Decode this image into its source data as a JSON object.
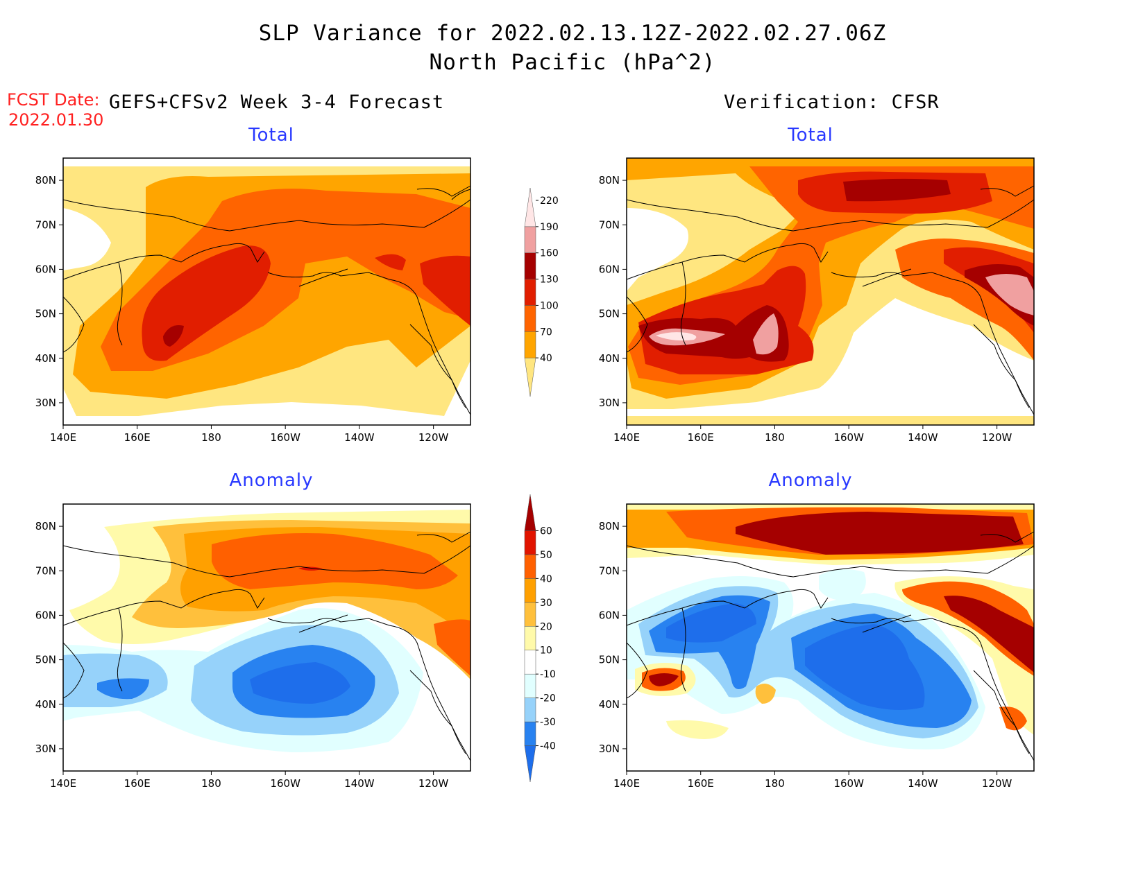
{
  "title": {
    "line1": "SLP Variance for 2022.02.13.12Z-2022.02.27.06Z",
    "line2": "North Pacific (hPa^2)"
  },
  "forecast_date": {
    "label": "FCST Date:",
    "value": "2022.01.30"
  },
  "columns": {
    "left": "GEFS+CFSv2 Week 3-4 Forecast",
    "right": "Verification: CFSR"
  },
  "panels": {
    "forecast_total": "Total",
    "verification_total": "Total",
    "forecast_anomaly": "Anomaly",
    "verification_anomaly": "Anomaly"
  },
  "axes": {
    "lat_ticks": [
      "80N",
      "70N",
      "60N",
      "50N",
      "40N",
      "30N"
    ],
    "lon_ticks": [
      "140E",
      "160E",
      "180",
      "160W",
      "140W",
      "120W"
    ],
    "lat_range": [
      25,
      85
    ],
    "lon_range": [
      140,
      250
    ]
  },
  "colorbar_total": {
    "levels": [
      "40",
      "70",
      "100",
      "130",
      "160",
      "190",
      "220"
    ],
    "colors": [
      "#ffe680",
      "#ffa500",
      "#ff6400",
      "#e11e00",
      "#a50000",
      "#f0a0a0",
      "#ffe6e6"
    ]
  },
  "colorbar_anomaly": {
    "levels": [
      "-40",
      "-30",
      "-20",
      "-10",
      "10",
      "20",
      "30",
      "40",
      "50",
      "60"
    ],
    "colors": [
      "#1e6eeb",
      "#2882f0",
      "#96d2fa",
      "#e1ffff",
      "#ffffff",
      "#fffaaa",
      "#ffc03c",
      "#ffa000",
      "#ff6000",
      "#e11400",
      "#a50000"
    ]
  },
  "map_colors": {
    "white": "#ffffff",
    "t40": "#ffe680",
    "t70": "#ffa500",
    "t100": "#ff6400",
    "t130": "#e11e00",
    "t160": "#a50000",
    "t190": "#f0a0a0",
    "t220": "#ffe6e6",
    "a10": "#fffaaa",
    "a20": "#ffc03c",
    "a30": "#ffa000",
    "a40": "#ff6000",
    "a50": "#e11400",
    "a60": "#a50000",
    "n10": "#e1ffff",
    "n20": "#96d2fa",
    "n30": "#2882f0",
    "n40": "#1e6eeb"
  }
}
